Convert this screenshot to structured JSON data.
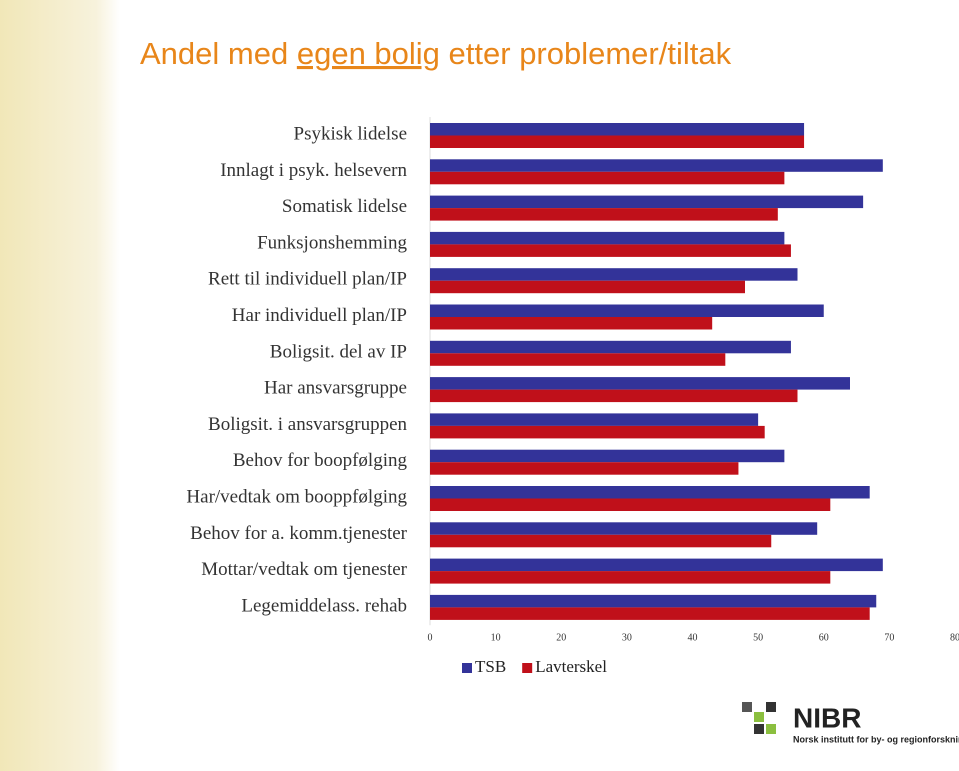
{
  "title_before": "Andel med",
  "title_link": "egen bolig",
  "title_after": "etter problemer/tiltak",
  "chart_data": {
    "type": "barh",
    "categories": [
      "Psykisk lidelse",
      "Innlagt i psyk. helsevern",
      "Somatisk lidelse",
      "Funksjonshemming",
      "Rett til individuell plan/IP",
      "Har individuell plan/IP",
      "Boligsit. del av IP",
      "Har ansvarsgruppe",
      "Boligsit. i ansvarsgruppen",
      "Behov for boopfølging",
      "Har/vedtak om booppfølging",
      "Behov for a. komm.tjenester",
      "Mottar/vedtak om tjenester",
      "Legemiddelass. rehab"
    ],
    "series": [
      {
        "name": "TSB",
        "color": "#333399",
        "values": [
          57,
          69,
          66,
          54,
          56,
          60,
          55,
          64,
          50,
          54,
          67,
          59,
          69,
          68
        ]
      },
      {
        "name": "Lavterskel",
        "color": "#c0101a",
        "values": [
          57,
          54,
          53,
          55,
          48,
          43,
          45,
          56,
          51,
          47,
          61,
          52,
          61,
          67
        ]
      }
    ],
    "xlim": [
      0,
      80
    ],
    "xticks": [
      0,
      10,
      20,
      30,
      40,
      50,
      60,
      70,
      80
    ],
    "legend": "bottom"
  },
  "logo": {
    "name": "NIBR",
    "subtitle": "Norsk institutt for by- og regionforskning"
  }
}
